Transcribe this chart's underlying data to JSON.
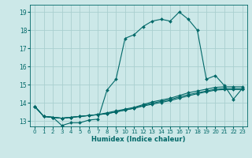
{
  "xlabel": "Humidex (Indice chaleur)",
  "bg_color": "#cce8e8",
  "grid_color": "#aacfcf",
  "line_color": "#006868",
  "xlim": [
    -0.5,
    23.5
  ],
  "ylim": [
    12.7,
    19.4
  ],
  "xticks": [
    0,
    1,
    2,
    3,
    4,
    5,
    6,
    7,
    8,
    9,
    10,
    11,
    12,
    13,
    14,
    15,
    16,
    17,
    18,
    19,
    20,
    21,
    22,
    23
  ],
  "yticks": [
    13,
    14,
    15,
    16,
    17,
    18,
    19
  ],
  "series1": [
    [
      0,
      13.8
    ],
    [
      1,
      13.25
    ],
    [
      2,
      13.2
    ],
    [
      3,
      12.75
    ],
    [
      4,
      12.9
    ],
    [
      5,
      12.9
    ],
    [
      6,
      13.05
    ],
    [
      7,
      13.1
    ],
    [
      8,
      14.7
    ],
    [
      9,
      15.3
    ],
    [
      10,
      17.55
    ],
    [
      11,
      17.75
    ],
    [
      12,
      18.2
    ],
    [
      13,
      18.5
    ],
    [
      14,
      18.6
    ],
    [
      15,
      18.5
    ],
    [
      16,
      19.0
    ],
    [
      17,
      18.6
    ],
    [
      18,
      18.0
    ],
    [
      19,
      15.3
    ],
    [
      20,
      15.5
    ],
    [
      21,
      14.95
    ],
    [
      22,
      14.2
    ],
    [
      23,
      14.8
    ]
  ],
  "series2": [
    [
      0,
      13.8
    ],
    [
      1,
      13.25
    ],
    [
      2,
      13.2
    ],
    [
      3,
      13.15
    ],
    [
      4,
      13.2
    ],
    [
      5,
      13.25
    ],
    [
      6,
      13.3
    ],
    [
      7,
      13.35
    ],
    [
      8,
      13.45
    ],
    [
      9,
      13.55
    ],
    [
      10,
      13.65
    ],
    [
      11,
      13.75
    ],
    [
      12,
      13.9
    ],
    [
      13,
      14.05
    ],
    [
      14,
      14.15
    ],
    [
      15,
      14.25
    ],
    [
      16,
      14.4
    ],
    [
      17,
      14.55
    ],
    [
      18,
      14.65
    ],
    [
      19,
      14.75
    ],
    [
      20,
      14.85
    ],
    [
      21,
      14.88
    ],
    [
      22,
      14.88
    ],
    [
      23,
      14.88
    ]
  ],
  "series3": [
    [
      0,
      13.8
    ],
    [
      1,
      13.25
    ],
    [
      2,
      13.2
    ],
    [
      3,
      13.15
    ],
    [
      4,
      13.2
    ],
    [
      5,
      13.25
    ],
    [
      6,
      13.3
    ],
    [
      7,
      13.35
    ],
    [
      8,
      13.4
    ],
    [
      9,
      13.5
    ],
    [
      10,
      13.6
    ],
    [
      11,
      13.7
    ],
    [
      12,
      13.85
    ],
    [
      13,
      13.98
    ],
    [
      14,
      14.08
    ],
    [
      15,
      14.18
    ],
    [
      16,
      14.32
    ],
    [
      17,
      14.45
    ],
    [
      18,
      14.55
    ],
    [
      19,
      14.65
    ],
    [
      20,
      14.75
    ],
    [
      21,
      14.78
    ],
    [
      22,
      14.78
    ],
    [
      23,
      14.78
    ]
  ],
  "series4": [
    [
      0,
      13.8
    ],
    [
      1,
      13.25
    ],
    [
      2,
      13.2
    ],
    [
      3,
      13.15
    ],
    [
      4,
      13.2
    ],
    [
      5,
      13.25
    ],
    [
      6,
      13.3
    ],
    [
      7,
      13.35
    ],
    [
      8,
      13.4
    ],
    [
      9,
      13.5
    ],
    [
      10,
      13.6
    ],
    [
      11,
      13.7
    ],
    [
      12,
      13.82
    ],
    [
      13,
      13.92
    ],
    [
      14,
      14.02
    ],
    [
      15,
      14.12
    ],
    [
      16,
      14.25
    ],
    [
      17,
      14.38
    ],
    [
      18,
      14.5
    ],
    [
      19,
      14.6
    ],
    [
      20,
      14.7
    ],
    [
      21,
      14.73
    ],
    [
      22,
      14.73
    ],
    [
      23,
      14.73
    ]
  ]
}
